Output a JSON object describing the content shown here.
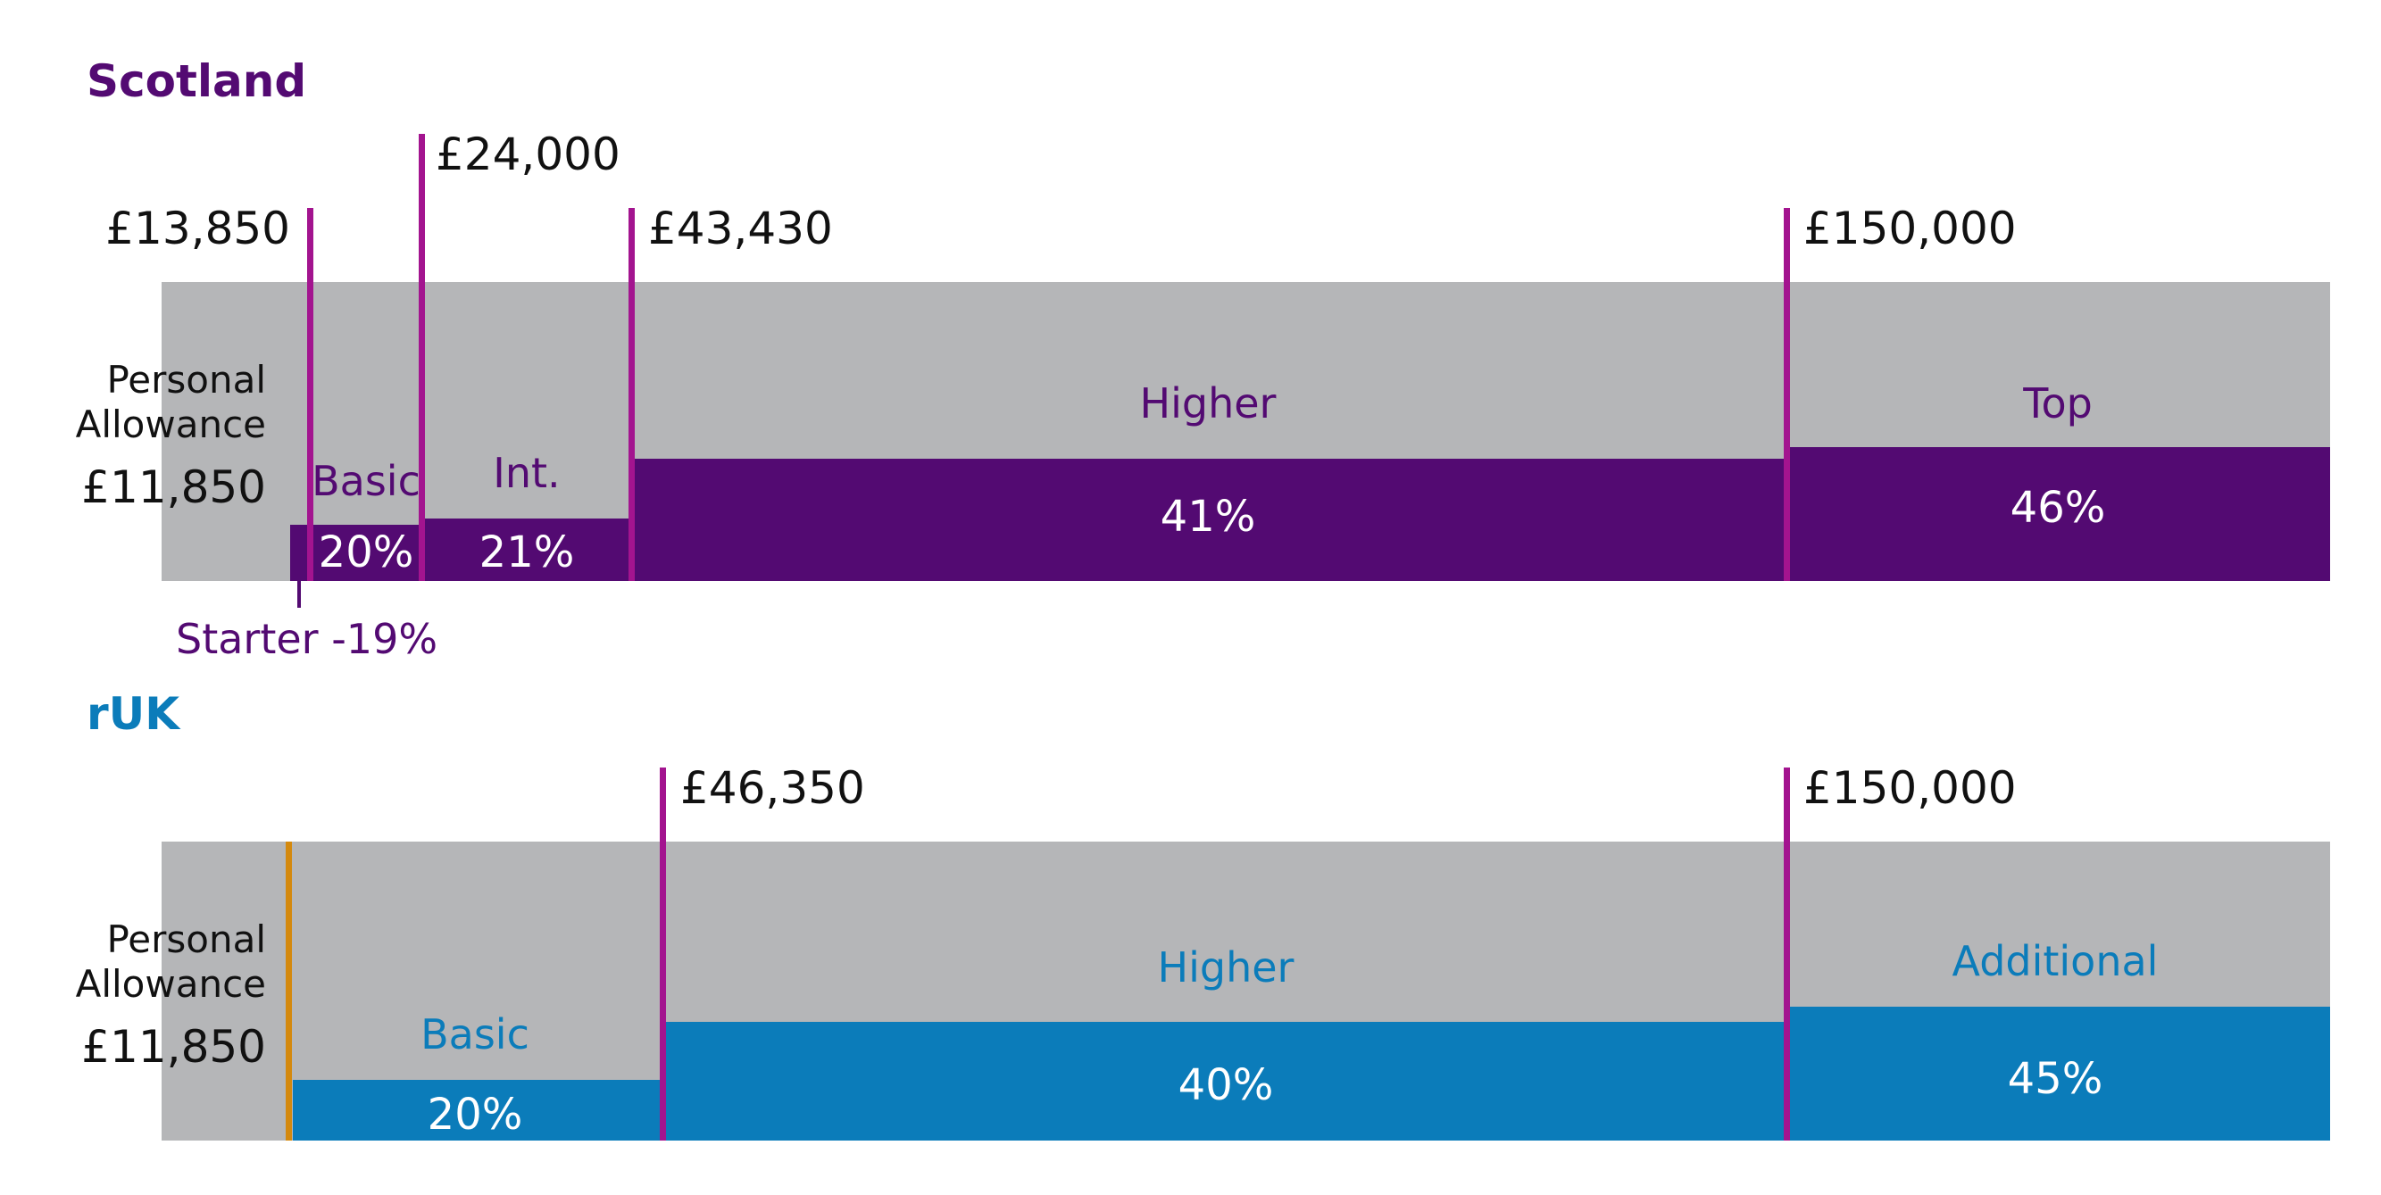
{
  "colors": {
    "background_bar": "#b5b6b8",
    "scotland_accent": "#530a72",
    "scotland_marker": "#a3148f",
    "ruk_accent": "#0b7cba",
    "ruk_pa_marker": "#d4890e",
    "rate_text": "#ffffff"
  },
  "scotland": {
    "title": "Scotland",
    "personal_allowance": {
      "line1": "Personal",
      "line2": "Allowance",
      "value": "£11,850"
    },
    "thresholds": {
      "t1": "£13,850",
      "t2": "£24,000",
      "t3": "£43,430",
      "t4": "£150,000"
    },
    "bands": {
      "basic": {
        "name": "Basic",
        "rate": "20%"
      },
      "intermediate": {
        "name": "Int.",
        "rate": "21%"
      },
      "higher": {
        "name": "Higher",
        "rate": "41%"
      },
      "top": {
        "name": "Top",
        "rate": "46%"
      }
    },
    "starter_label": "Starter -19%"
  },
  "ruk": {
    "title": "rUK",
    "personal_allowance": {
      "line1": "Personal",
      "line2": "Allowance",
      "value": "£11,850"
    },
    "thresholds": {
      "t1": "£46,350",
      "t2": "£150,000"
    },
    "bands": {
      "basic": {
        "name": "Basic",
        "rate": "20%"
      },
      "higher": {
        "name": "Higher",
        "rate": "40%"
      },
      "additional": {
        "name": "Additional",
        "rate": "45%"
      }
    }
  }
}
